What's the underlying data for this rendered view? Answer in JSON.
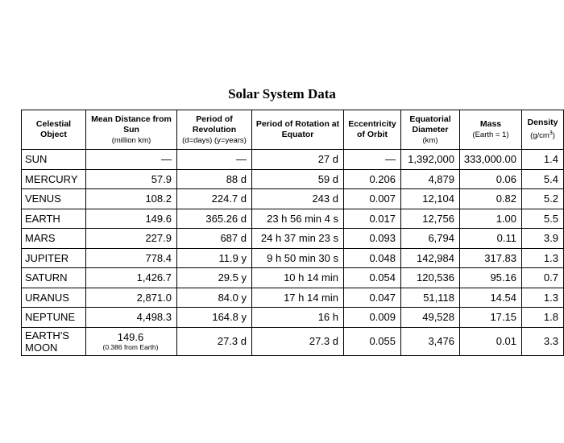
{
  "title": "Solar System Data",
  "columns": [
    {
      "title": "Celestial Object",
      "sub": ""
    },
    {
      "title": "Mean Distance from Sun",
      "sub": "(million km)"
    },
    {
      "title": "Period of Revolution",
      "sub": "(d=days)  (y=years)"
    },
    {
      "title": "Period of Rotation at Equator",
      "sub": ""
    },
    {
      "title": "Eccentricity of Orbit",
      "sub": ""
    },
    {
      "title": "Equatorial Diameter",
      "sub": "(km)"
    },
    {
      "title": "Mass",
      "sub": "(Earth = 1)"
    },
    {
      "title": "Density",
      "sub": "(g/cm3)"
    }
  ],
  "rows": [
    {
      "object": "SUN",
      "distance": "—",
      "revolution": "—",
      "rotation": "27 d",
      "eccentricity": "—",
      "diameter": "1,392,000",
      "mass": "333,000.00",
      "density": "1.4"
    },
    {
      "object": "MERCURY",
      "distance": "57.9",
      "revolution": "88 d",
      "rotation": "59 d",
      "eccentricity": "0.206",
      "diameter": "4,879",
      "mass": "0.06",
      "density": "5.4"
    },
    {
      "object": "VENUS",
      "distance": "108.2",
      "revolution": "224.7 d",
      "rotation": "243 d",
      "eccentricity": "0.007",
      "diameter": "12,104",
      "mass": "0.82",
      "density": "5.2"
    },
    {
      "object": "EARTH",
      "distance": "149.6",
      "revolution": "365.26 d",
      "rotation": "23 h 56 min 4 s",
      "eccentricity": "0.017",
      "diameter": "12,756",
      "mass": "1.00",
      "density": "5.5"
    },
    {
      "object": "MARS",
      "distance": "227.9",
      "revolution": "687 d",
      "rotation": "24 h 37 min 23 s",
      "eccentricity": "0.093",
      "diameter": "6,794",
      "mass": "0.11",
      "density": "3.9"
    },
    {
      "object": "JUPITER",
      "distance": "778.4",
      "revolution": "11.9 y",
      "rotation": "9 h 50 min 30 s",
      "eccentricity": "0.048",
      "diameter": "142,984",
      "mass": "317.83",
      "density": "1.3"
    },
    {
      "object": "SATURN",
      "distance": "1,426.7",
      "revolution": "29.5 y",
      "rotation": "10 h 14 min",
      "eccentricity": "0.054",
      "diameter": "120,536",
      "mass": "95.16",
      "density": "0.7"
    },
    {
      "object": "URANUS",
      "distance": "2,871.0",
      "revolution": "84.0 y",
      "rotation": "17 h 14 min",
      "eccentricity": "0.047",
      "diameter": "51,118",
      "mass": "14.54",
      "density": "1.3"
    },
    {
      "object": "NEPTUNE",
      "distance": "4,498.3",
      "revolution": "164.8 y",
      "rotation": "16 h",
      "eccentricity": "0.009",
      "diameter": "49,528",
      "mass": "17.15",
      "density": "1.8"
    }
  ],
  "moon": {
    "object_line1": "EARTH'S",
    "object_line2": "MOON",
    "distance": "149.6",
    "distance_note": "(0.386 from Earth)",
    "revolution": "27.3 d",
    "rotation": "27.3 d",
    "eccentricity": "0.055",
    "diameter": "3,476",
    "mass": "0.01",
    "density": "3.3"
  }
}
